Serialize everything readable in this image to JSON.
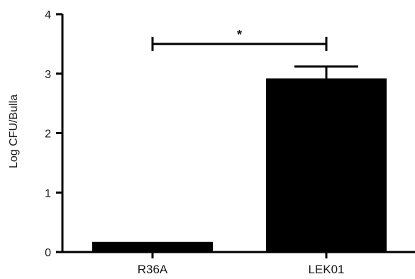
{
  "chart_data": {
    "type": "bar",
    "categories": [
      "R36A",
      "LEK01"
    ],
    "values": [
      0.17,
      2.92
    ],
    "error_upper": [
      0.0,
      0.2
    ],
    "title": "",
    "xlabel": "",
    "ylabel": "Log CFU/Bulla",
    "ylim": [
      0,
      4
    ],
    "yticks": [
      0,
      1,
      2,
      3,
      4
    ],
    "grid": false,
    "bar_color": "#000000",
    "significance": {
      "between": [
        "R36A",
        "LEK01"
      ],
      "y": 3.5,
      "label": "*"
    }
  }
}
